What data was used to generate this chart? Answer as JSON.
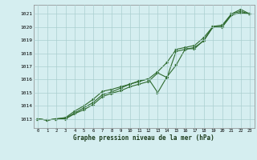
{
  "title": "Graphe pression niveau de la mer (hPa)",
  "background_color": "#d5eef0",
  "plot_bg_color": "#d5eef0",
  "grid_color": "#aacfcf",
  "line_color": "#2d6a2d",
  "marker_color": "#2d6a2d",
  "xlim": [
    -0.5,
    23.5
  ],
  "ylim": [
    1012.3,
    1021.7
  ],
  "yticks": [
    1013,
    1014,
    1015,
    1016,
    1017,
    1018,
    1019,
    1020,
    1021
  ],
  "xticks": [
    0,
    1,
    2,
    3,
    4,
    5,
    6,
    7,
    8,
    9,
    10,
    11,
    12,
    13,
    14,
    15,
    16,
    17,
    18,
    19,
    20,
    21,
    22,
    23
  ],
  "series1": [
    1013.0,
    1012.9,
    1013.0,
    1013.1,
    1013.6,
    1014.0,
    1014.5,
    1015.1,
    1015.25,
    1015.45,
    1015.65,
    1015.9,
    1016.05,
    1016.6,
    1017.3,
    1018.3,
    1018.45,
    1018.6,
    1019.2,
    1020.05,
    1020.15,
    1021.0,
    1021.35,
    1021.0
  ],
  "series2": [
    1013.0,
    1012.9,
    1013.0,
    1013.05,
    1013.45,
    1013.85,
    1014.25,
    1014.85,
    1015.05,
    1015.35,
    1015.65,
    1015.85,
    1016.05,
    1015.0,
    1016.2,
    1017.1,
    1018.35,
    1018.35,
    1019.0,
    1020.05,
    1020.05,
    1021.0,
    1021.2,
    1021.0
  ],
  "series3": [
    1013.0,
    1012.9,
    1013.0,
    1013.0,
    1013.4,
    1013.7,
    1014.1,
    1014.7,
    1014.95,
    1015.15,
    1015.45,
    1015.65,
    1015.85,
    1016.5,
    1016.15,
    1018.15,
    1018.3,
    1018.45,
    1018.95,
    1020.0,
    1020.0,
    1020.9,
    1021.1,
    1021.0
  ]
}
